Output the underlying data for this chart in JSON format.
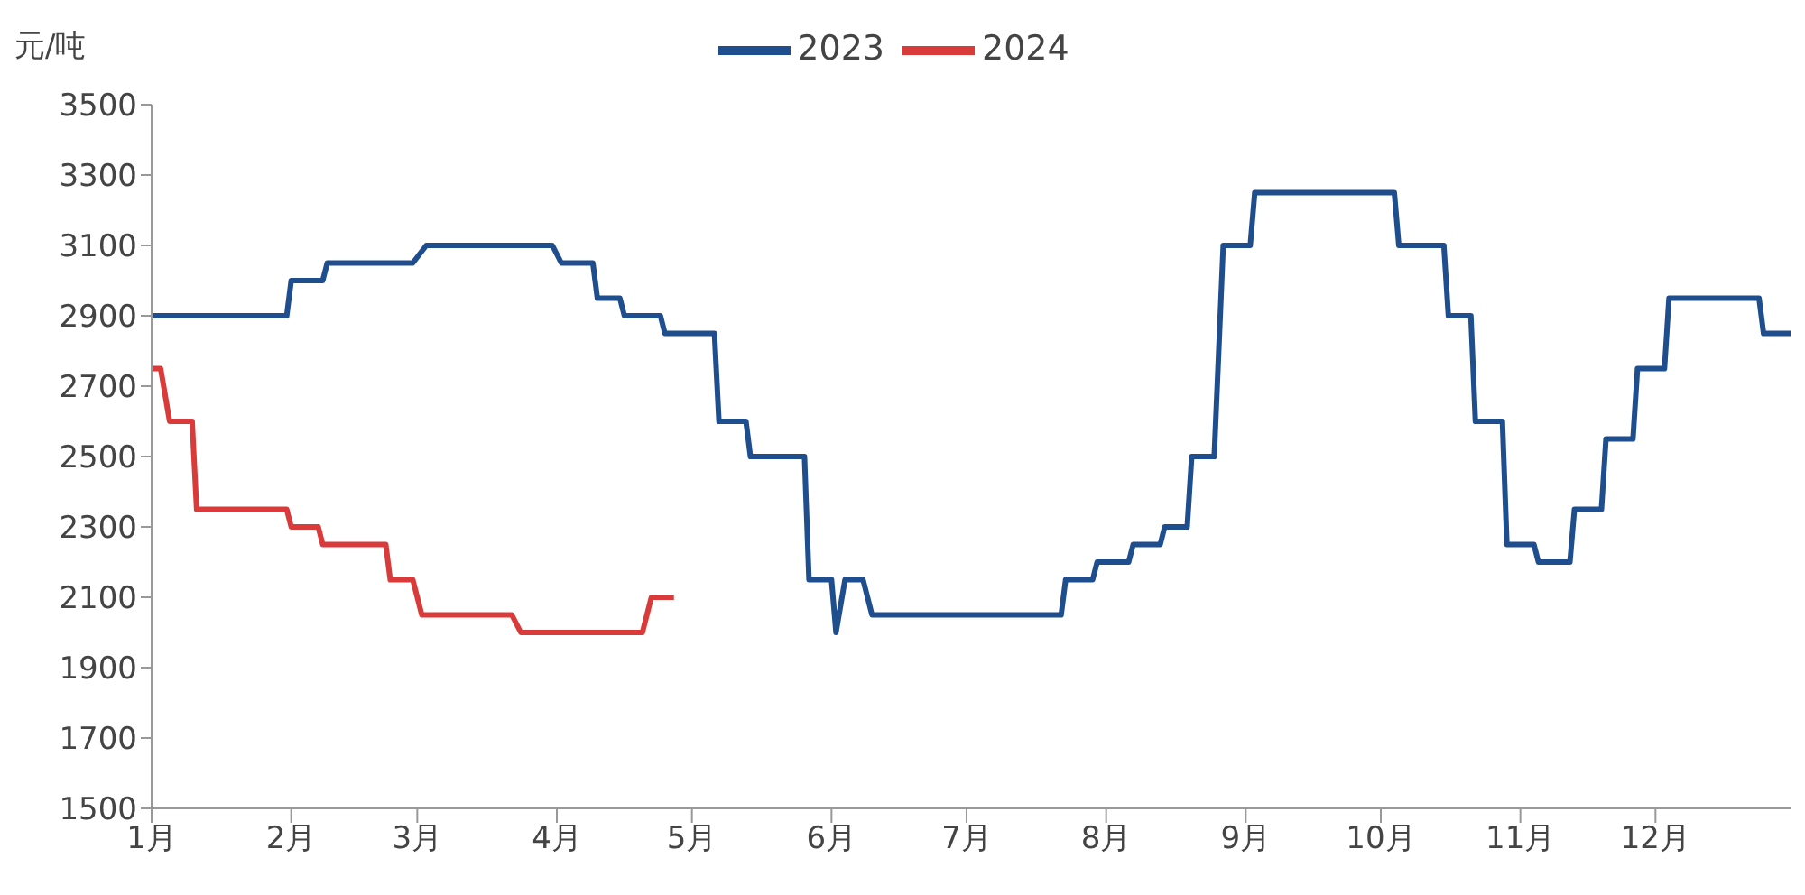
{
  "chart_data": {
    "type": "line",
    "ylabel": "元/吨",
    "legend": "top",
    "grid": false,
    "xlim": [
      "--01-01",
      "--12-31"
    ],
    "xticks": [
      {
        "value": "--01-01",
        "label": "1月"
      },
      {
        "value": "--02-01",
        "label": "2月"
      },
      {
        "value": "--03-01",
        "label": "3月"
      },
      {
        "value": "--04-01",
        "label": "4月"
      },
      {
        "value": "--05-01",
        "label": "5月"
      },
      {
        "value": "--06-01",
        "label": "6月"
      },
      {
        "value": "--07-01",
        "label": "7月"
      },
      {
        "value": "--08-01",
        "label": "8月"
      },
      {
        "value": "--09-01",
        "label": "9月"
      },
      {
        "value": "--10-01",
        "label": "10月"
      },
      {
        "value": "--11-01",
        "label": "11月"
      },
      {
        "value": "--12-01",
        "label": "12月"
      }
    ],
    "ylim": [
      1500,
      3500
    ],
    "yticks": [
      1500,
      1700,
      1900,
      2100,
      2300,
      2500,
      2700,
      2900,
      3100,
      3300,
      3500
    ],
    "series": [
      {
        "name": "2023",
        "color": "#1f4e8f",
        "x": [
          "--01-01",
          "--01-31",
          "--02-01",
          "--02-08",
          "--02-09",
          "--02-28",
          "--03-03",
          "--03-31",
          "--04-02",
          "--04-09",
          "--04-10",
          "--04-15",
          "--04-16",
          "--04-24",
          "--04-25",
          "--05-06",
          "--05-07",
          "--05-13",
          "--05-14",
          "--05-26",
          "--05-27",
          "--06-01",
          "--06-02",
          "--06-04",
          "--06-08",
          "--06-10",
          "--07-22",
          "--07-23",
          "--07-29",
          "--07-30",
          "--08-06",
          "--08-07",
          "--08-13",
          "--08-14",
          "--08-19",
          "--08-20",
          "--08-25",
          "--08-27",
          "--09-02",
          "--09-03",
          "--10-04",
          "--10-05",
          "--10-15",
          "--10-16",
          "--10-21",
          "--10-22",
          "--10-28",
          "--10-29",
          "--11-04",
          "--11-05",
          "--11-12",
          "--11-13",
          "--11-19",
          "--11-20",
          "--11-26",
          "--11-27",
          "--12-03",
          "--12-04",
          "--12-24",
          "--12-25",
          "--12-31"
        ],
        "values": [
          2900,
          2900,
          3000,
          3000,
          3050,
          3050,
          3100,
          3100,
          3050,
          3050,
          2950,
          2950,
          2900,
          2900,
          2850,
          2850,
          2600,
          2600,
          2500,
          2500,
          2150,
          2150,
          2000,
          2150,
          2150,
          2050,
          2050,
          2150,
          2150,
          2200,
          2200,
          2250,
          2250,
          2300,
          2300,
          2500,
          2500,
          3100,
          3100,
          3250,
          3250,
          3100,
          3100,
          2900,
          2900,
          2600,
          2600,
          2250,
          2250,
          2200,
          2200,
          2350,
          2350,
          2550,
          2550,
          2750,
          2750,
          2950,
          2950,
          2850,
          2850
        ]
      },
      {
        "name": "2024",
        "color": "#d93a3a",
        "x": [
          "--01-01",
          "--01-03",
          "--01-05",
          "--01-10",
          "--01-11",
          "--01-31",
          "--02-01",
          "--02-07",
          "--02-08",
          "--02-22",
          "--02-23",
          "--02-28",
          "--03-02",
          "--03-22",
          "--03-24",
          "--04-20",
          "--04-22",
          "--04-27"
        ],
        "values": [
          2750,
          2750,
          2600,
          2600,
          2350,
          2350,
          2300,
          2300,
          2250,
          2250,
          2150,
          2150,
          2050,
          2050,
          2000,
          2000,
          2100,
          2100
        ]
      }
    ]
  }
}
